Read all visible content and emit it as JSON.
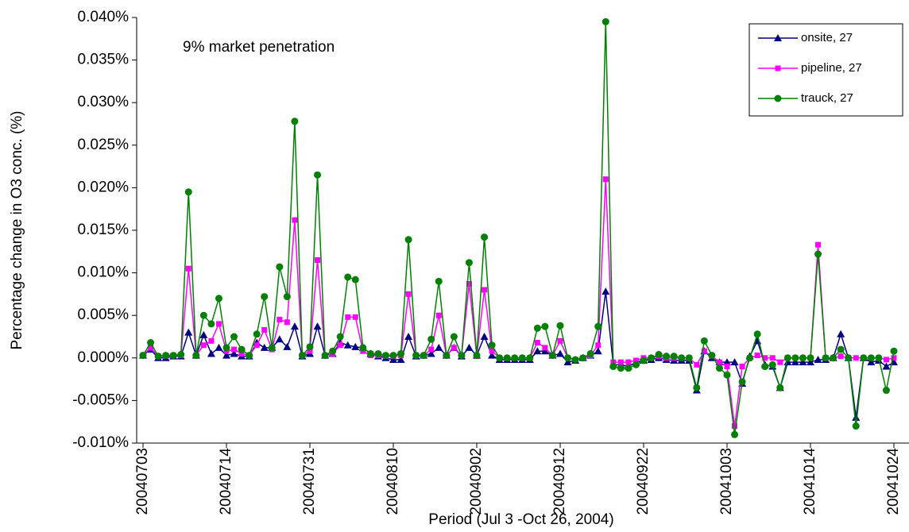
{
  "chart_data": {
    "type": "line",
    "annotation": "9% market penetration",
    "y_label": "Percentage change in O3 conc. (%)",
    "x_label": "Period (Jul 3 -Oct 26, 2004)",
    "legend": "upper right",
    "categories": [
      "20040703",
      null,
      null,
      null,
      null,
      null,
      null,
      null,
      null,
      null,
      null,
      "20040714",
      null,
      null,
      null,
      null,
      null,
      null,
      null,
      null,
      null,
      null,
      "20040731",
      null,
      null,
      null,
      null,
      null,
      null,
      null,
      null,
      null,
      null,
      "20040810",
      null,
      null,
      null,
      null,
      null,
      null,
      null,
      null,
      null,
      null,
      "20040902",
      null,
      null,
      null,
      null,
      null,
      null,
      null,
      null,
      null,
      null,
      "20040912",
      null,
      null,
      null,
      null,
      null,
      null,
      null,
      null,
      null,
      null,
      "20040922",
      null,
      null,
      null,
      null,
      null,
      null,
      null,
      null,
      null,
      null,
      "20041003",
      null,
      null,
      null,
      null,
      null,
      null,
      null,
      null,
      null,
      null,
      "20041014",
      null,
      null,
      null,
      null,
      null,
      null,
      null,
      null,
      null,
      null,
      "20041024"
    ],
    "ylim": [
      -0.01,
      0.04
    ],
    "yticks": [
      {
        "value": -0.01,
        "label": "-0.010%"
      },
      {
        "value": -0.005,
        "label": "-0.005%"
      },
      {
        "value": 0,
        "label": "0.000%"
      },
      {
        "value": 0.005,
        "label": "0.005%"
      },
      {
        "value": 0.01,
        "label": "0.010%"
      },
      {
        "value": 0.015,
        "label": "0.015%"
      },
      {
        "value": 0.02,
        "label": "0.020%"
      },
      {
        "value": 0.025,
        "label": "0.025%"
      },
      {
        "value": 0.03,
        "label": "0.030%"
      },
      {
        "value": 0.035,
        "label": "0.035%"
      },
      {
        "value": 0.04,
        "label": "0.040%"
      }
    ],
    "series": [
      {
        "name": "onsite, 27",
        "color": "#000080",
        "marker": "triangle",
        "values": [
          0.0003,
          0.001,
          0,
          0,
          0.0002,
          0.0002,
          0.003,
          0.0003,
          0.0027,
          0.0005,
          0.0012,
          0.0003,
          0.0005,
          0.0002,
          0.0002,
          0.0018,
          0.0012,
          0.0012,
          0.0022,
          0.0013,
          0.0037,
          0.0002,
          0.0005,
          0.0037,
          0.0003,
          0.0005,
          0.0018,
          0.0015,
          0.0013,
          0.0012,
          0.0005,
          0.0002,
          0,
          -0.0002,
          -0.0002,
          0.0025,
          0.0002,
          0.0003,
          0.0005,
          0.0012,
          0.0003,
          0.0012,
          0.0002,
          0.0012,
          0.0003,
          0.0025,
          0.0003,
          -0.0002,
          -0.0002,
          -0.0002,
          -0.0002,
          -0.0002,
          0.0008,
          0.0008,
          0.0003,
          0.0005,
          -0.0005,
          -0.0003,
          0,
          0.0003,
          0.0008,
          0.0078,
          -0.0008,
          -0.0008,
          -0.001,
          -0.0005,
          -0.0003,
          -0.0002,
          0,
          -0.0002,
          -0.0003,
          -0.0003,
          -0.0003,
          -0.0038,
          0.0008,
          0,
          -0.0005,
          -0.0005,
          -0.0005,
          -0.003,
          0.0002,
          0.002,
          -0.0008,
          -0.001,
          -0.0035,
          -0.0005,
          -0.0005,
          -0.0005,
          -0.0005,
          -0.0002,
          -0.0002,
          0,
          0.0028,
          0,
          -0.007,
          0,
          -0.0005,
          -0.0003,
          -0.001,
          -0.0005
        ]
      },
      {
        "name": "pipeline, 27",
        "color": "#ff00ff",
        "marker": "square",
        "values": [
          0.0003,
          0.0012,
          0.0002,
          0.0002,
          0.0003,
          0.0003,
          0.0105,
          0.0003,
          0.0015,
          0.002,
          0.004,
          0.0008,
          0.001,
          0.0005,
          0.0003,
          0.0015,
          0.0033,
          0.001,
          0.0045,
          0.0042,
          0.0162,
          0.0003,
          0.0008,
          0.0115,
          0.0003,
          0.0005,
          0.0015,
          0.0048,
          0.0048,
          0.0008,
          0.0003,
          0.0003,
          0.0002,
          0.0002,
          0.0003,
          0.0075,
          0.0003,
          0.0003,
          0.001,
          0.005,
          0.0003,
          0.0012,
          0.0003,
          0.0087,
          0.0002,
          0.008,
          0.0008,
          0,
          0,
          0,
          0,
          0,
          0.0018,
          0.0012,
          0.0003,
          0.002,
          0,
          -0.0002,
          0,
          0.0003,
          0.0015,
          0.021,
          -0.0005,
          -0.0005,
          -0.0005,
          -0.0003,
          0,
          0,
          0.0002,
          0,
          0,
          0,
          0,
          -0.0008,
          0.0008,
          0.0002,
          -0.0005,
          -0.001,
          -0.008,
          -0.001,
          0,
          0.0003,
          0,
          0,
          -0.0005,
          0,
          0,
          0,
          0,
          0.0133,
          0,
          0,
          0.0002,
          0,
          0,
          0,
          0,
          0,
          -0.0002,
          0
        ]
      },
      {
        "name": "trauck, 27",
        "color": "#008000",
        "marker": "circle",
        "values": [
          0.0003,
          0.0018,
          0.0002,
          0.0003,
          0.0003,
          0.0004,
          0.0195,
          0.0003,
          0.005,
          0.004,
          0.007,
          0.0012,
          0.0025,
          0.001,
          0.0003,
          0.0028,
          0.0072,
          0.0012,
          0.0107,
          0.0072,
          0.0278,
          0.0003,
          0.0013,
          0.0215,
          0.0003,
          0.0008,
          0.0025,
          0.0095,
          0.0092,
          0.0012,
          0.0005,
          0.0005,
          0.0003,
          0.0003,
          0.0005,
          0.0139,
          0.0003,
          0.0003,
          0.0022,
          0.009,
          0.0003,
          0.0025,
          0.0003,
          0.0112,
          0.0003,
          0.0142,
          0.0015,
          0,
          0,
          0,
          0,
          0,
          0.0035,
          0.0037,
          0.0003,
          0.0038,
          0,
          -0.0002,
          0,
          0.0005,
          0.0037,
          0.0395,
          -0.001,
          -0.0012,
          -0.0012,
          -0.0008,
          -0.0003,
          0,
          0.0004,
          0.0002,
          0.0002,
          0,
          0,
          -0.0035,
          0.002,
          0.0003,
          -0.0012,
          -0.002,
          -0.009,
          -0.0028,
          0,
          0.0028,
          -0.001,
          -0.0008,
          -0.0035,
          0,
          0,
          0,
          0,
          0.0122,
          0,
          0,
          0.001,
          0,
          -0.008,
          0,
          0,
          0,
          -0.0038,
          0.0008
        ]
      }
    ]
  }
}
